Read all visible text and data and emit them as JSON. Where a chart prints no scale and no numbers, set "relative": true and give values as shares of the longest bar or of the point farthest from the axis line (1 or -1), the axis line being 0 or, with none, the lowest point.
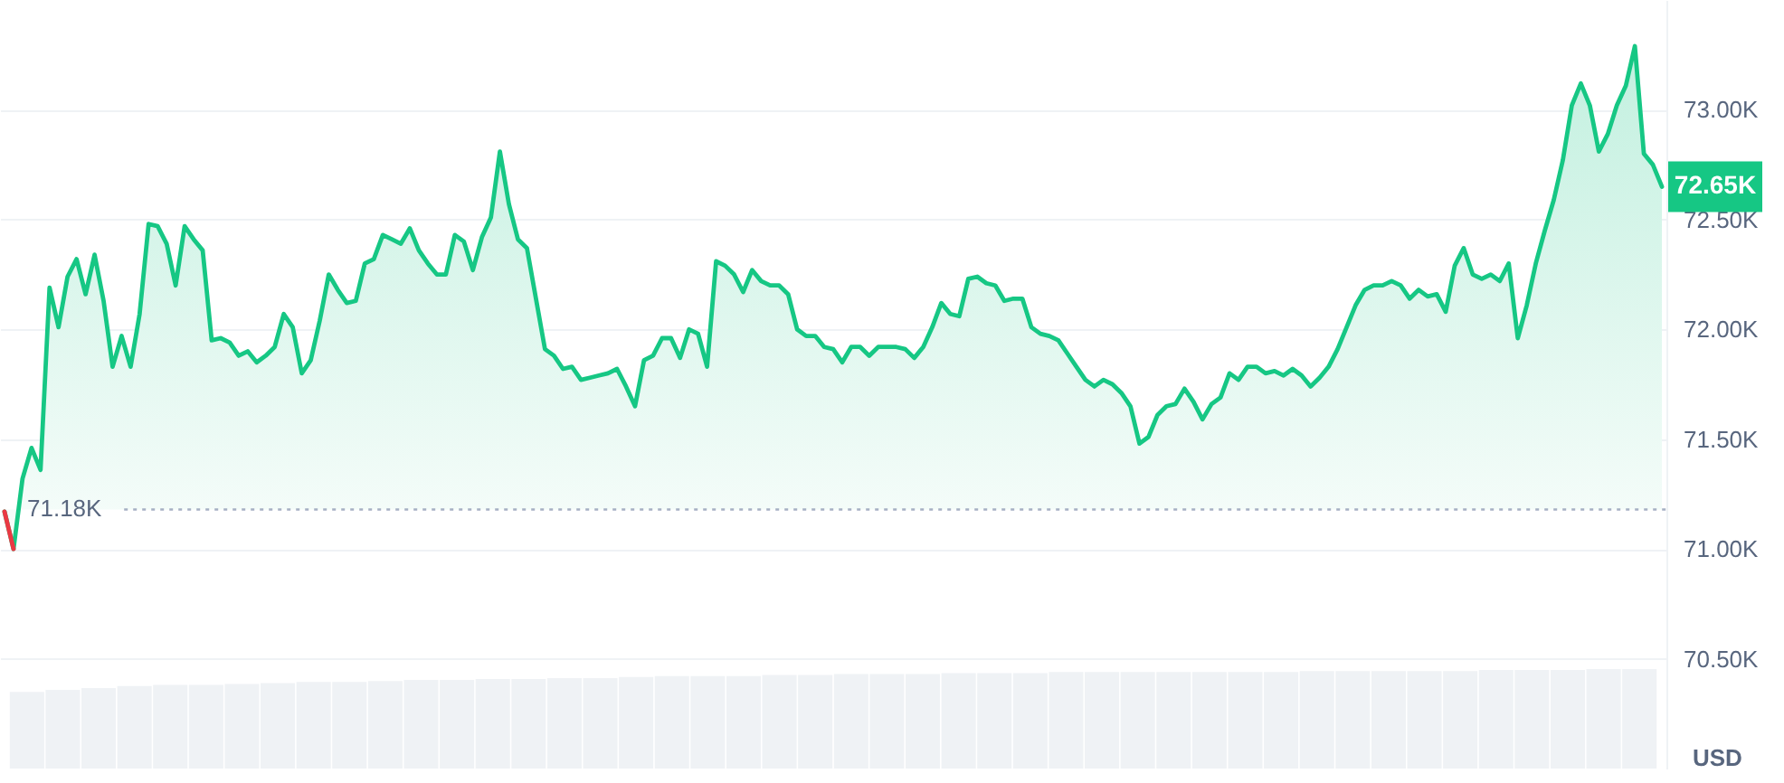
{
  "chart_data": [
    {
      "type": "area",
      "ylabel": "USD",
      "categories": [
        null,
        null,
        null,
        null,
        null,
        null,
        null,
        null,
        null,
        null,
        null,
        null,
        null,
        null,
        null,
        null,
        null,
        null,
        null,
        null,
        null,
        null,
        null,
        null,
        null,
        null,
        null,
        null,
        null,
        null,
        null,
        null,
        null,
        null,
        null,
        null,
        null,
        null,
        null,
        null,
        null,
        null,
        null,
        null,
        null,
        null,
        null,
        null,
        null,
        null,
        null,
        null,
        null,
        null,
        null,
        null,
        null,
        null,
        null,
        null,
        null,
        null,
        null,
        null,
        null,
        null,
        null,
        null,
        null,
        null,
        null,
        null,
        null,
        null,
        null,
        null,
        null,
        null,
        null,
        null,
        null,
        null,
        null,
        null,
        null,
        null,
        null,
        null,
        null,
        null,
        null,
        null,
        null,
        null,
        null,
        null,
        null,
        null,
        null,
        null,
        null,
        null,
        null,
        null,
        null,
        null,
        null,
        null,
        null,
        null,
        null,
        null,
        null,
        null,
        null,
        null,
        null,
        null,
        null,
        null,
        null,
        null,
        null,
        null,
        null,
        null,
        null,
        null,
        null,
        null,
        null,
        null,
        null,
        null,
        null,
        null,
        null,
        null,
        null,
        null,
        null,
        null,
        null,
        null,
        null,
        null,
        null,
        null,
        null,
        null,
        null,
        null,
        null,
        null,
        null,
        null,
        null,
        null,
        null,
        null,
        null,
        null,
        null,
        null,
        null,
        null,
        null,
        null,
        null,
        null,
        null,
        null,
        null,
        null,
        null,
        null,
        null,
        null,
        null,
        null,
        null,
        null,
        null,
        null,
        null
      ],
      "series": [
        {
          "color": "#16c784",
          "values": [
            71170,
            71000,
            71320,
            71460,
            71360,
            72190,
            72010,
            72240,
            72320,
            72160,
            72340,
            72130,
            71830,
            71970,
            71830,
            72070,
            72480,
            72470,
            72390,
            72200,
            72470,
            72410,
            72360,
            71950,
            71960,
            71940,
            71880,
            71900,
            71850,
            71880,
            71920,
            72070,
            72010,
            71800,
            71860,
            72040,
            72250,
            72180,
            72120,
            72130,
            72300,
            72320,
            72430,
            72410,
            72390,
            72460,
            72360,
            72300,
            72250,
            72250,
            72430,
            72400,
            72270,
            72420,
            72510,
            72810,
            72570,
            72410,
            72370,
            72140,
            71910,
            71880,
            71820,
            71830,
            71770,
            71780,
            71790,
            71800,
            71820,
            71740,
            71650,
            71860,
            71880,
            71960,
            71960,
            71870,
            72000,
            71980,
            71830,
            72310,
            72290,
            72250,
            72170,
            72270,
            72220,
            72200,
            72200,
            72160,
            72000,
            71970,
            71970,
            71920,
            71910,
            71850,
            71920,
            71920,
            71880,
            71920,
            71920,
            71920,
            71910,
            71870,
            71920,
            72010,
            72120,
            72070,
            72060,
            72230,
            72240,
            72210,
            72200,
            72130,
            72140,
            72140,
            72010,
            71980,
            71970,
            71950,
            71890,
            71830,
            71770,
            71740,
            71770,
            71750,
            71710,
            71650,
            71480,
            71510,
            71610,
            71650,
            71660,
            71730,
            71670,
            71590,
            71660,
            71690,
            71800,
            71770,
            71830,
            71830,
            71800,
            71810,
            71790,
            71820,
            71790,
            71740,
            71780,
            71830,
            71910,
            72010,
            72110,
            72180,
            72200,
            72200,
            72220,
            72200,
            72140,
            72180,
            72150,
            72160,
            72080,
            72290,
            72370,
            72250,
            72230,
            72250,
            72220,
            72300,
            71960,
            72110,
            72300,
            72450,
            72590,
            72770,
            73020,
            73120,
            73020,
            72810,
            72890,
            73020,
            73110,
            73290,
            72800,
            72750,
            72650
          ]
        },
        {
          "type": "line",
          "color": "#ea3943",
          "values": [
            71170,
            71000,
            null,
            null,
            null,
            null,
            null,
            null,
            null,
            null,
            null,
            null,
            null,
            null,
            null,
            null,
            null,
            null,
            null,
            null,
            null,
            null,
            null,
            null,
            null,
            null,
            null,
            null,
            null,
            null,
            null,
            null,
            null,
            null,
            null,
            null,
            null,
            null,
            null,
            null,
            null,
            null,
            null,
            null,
            null,
            null,
            null,
            null,
            null,
            null,
            null,
            null,
            null,
            null,
            null,
            null,
            null,
            null,
            null,
            null,
            null,
            null,
            null,
            null,
            null,
            null,
            null,
            null,
            null,
            null,
            null,
            null,
            null,
            null,
            null,
            null,
            null,
            null,
            null,
            null,
            null,
            null,
            null,
            null,
            null,
            null,
            null,
            null,
            null,
            null,
            null,
            null,
            null,
            null,
            null,
            null,
            null,
            null,
            null,
            null,
            null,
            null,
            null,
            null,
            null,
            null,
            null,
            null,
            null,
            null,
            null,
            null,
            null,
            null,
            null,
            null,
            null,
            null,
            null,
            null,
            null,
            null,
            null,
            null,
            null,
            null,
            null,
            null,
            null,
            null,
            null,
            null,
            null,
            null,
            null,
            null,
            null,
            null,
            null,
            null,
            null,
            null,
            null,
            null,
            null,
            null,
            null,
            null,
            null,
            null,
            null,
            null,
            null,
            null,
            null,
            null,
            null,
            null,
            null,
            null,
            null,
            null,
            null,
            null,
            null,
            null,
            null,
            null,
            null,
            null,
            null,
            null,
            null,
            null,
            null,
            null,
            null,
            null,
            null,
            null,
            null,
            null,
            null,
            null,
            null
          ]
        }
      ],
      "ylim": [
        70000,
        73500
      ],
      "yticks": [
        {
          "value": 70500,
          "label": "70.50K"
        },
        {
          "value": 71000,
          "label": "71.00K"
        },
        {
          "value": 71500,
          "label": "71.50K"
        },
        {
          "value": 72000,
          "label": "72.00K"
        },
        {
          "value": 72500,
          "label": "72.50K"
        },
        {
          "value": 73000,
          "label": "73.00K"
        }
      ],
      "grid": "y",
      "tick_labels": "y",
      "ref_lines": [
        {
          "axis": "y",
          "value": 71180,
          "label": "71.18K",
          "line_style": "dotted",
          "color": "#a6b0c3"
        }
      ],
      "annotations": [
        "72.65K"
      ]
    },
    {
      "type": "bar",
      "relative": true,
      "color": "#eff2f5",
      "tick_labels": false,
      "categories": [
        null,
        null,
        null,
        null,
        null,
        null,
        null,
        null,
        null,
        null,
        null,
        null,
        null,
        null,
        null,
        null,
        null,
        null,
        null,
        null,
        null,
        null,
        null,
        null,
        null,
        null,
        null,
        null,
        null,
        null,
        null,
        null,
        null,
        null,
        null,
        null,
        null,
        null,
        null,
        null,
        null,
        null,
        null,
        null,
        null,
        null
      ],
      "values": [
        0.77,
        0.79,
        0.81,
        0.83,
        0.84,
        0.84,
        0.85,
        0.86,
        0.87,
        0.87,
        0.88,
        0.89,
        0.89,
        0.9,
        0.9,
        0.91,
        0.91,
        0.92,
        0.93,
        0.93,
        0.93,
        0.94,
        0.94,
        0.95,
        0.95,
        0.95,
        0.96,
        0.96,
        0.96,
        0.97,
        0.97,
        0.97,
        0.97,
        0.97,
        0.97,
        0.97,
        0.98,
        0.98,
        0.98,
        0.98,
        0.98,
        0.99,
        0.99,
        0.99,
        1.0,
        1.0
      ]
    }
  ]
}
